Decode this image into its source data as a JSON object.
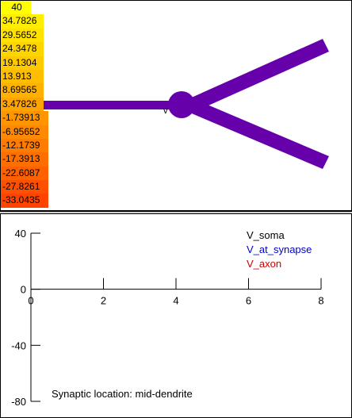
{
  "colorbar": {
    "labels": [
      "40",
      "34.7826",
      "29.5652",
      "24.3478",
      "19.1304",
      "13.913",
      "8.69565",
      "3.47826",
      "-1.73913",
      "-6.95652",
      "-12.1739",
      "-17.3913",
      "-22.6087",
      "-27.8261",
      "-33.0435"
    ],
    "colors": [
      "#ffff00",
      "#ffee00",
      "#ffe200",
      "#ffd500",
      "#ffc900",
      "#ffbd00",
      "#ffb000",
      "#ffa300",
      "#ff9600",
      "#ff8900",
      "#ff7c00",
      "#ff6f00",
      "#ff6000",
      "#ff5000",
      "#ff4400"
    ]
  },
  "neuron": {
    "color": "#6600aa",
    "marker_label": "v"
  },
  "chart_data": {
    "type": "line",
    "x_ticks": [
      0,
      2,
      4,
      6,
      8
    ],
    "y_ticks": [
      40,
      0,
      -40,
      -80
    ],
    "xlim": [
      0,
      8
    ],
    "ylim": [
      -80,
      40
    ],
    "series": [
      {
        "name": "V_soma",
        "color": "#000000",
        "values": []
      },
      {
        "name": "V_at_synapse",
        "color": "#0000cc",
        "values": []
      },
      {
        "name": "V_axon",
        "color": "#cc0000",
        "values": []
      }
    ],
    "annotation": "Synaptic location: mid-dendrite",
    "grid": false
  }
}
